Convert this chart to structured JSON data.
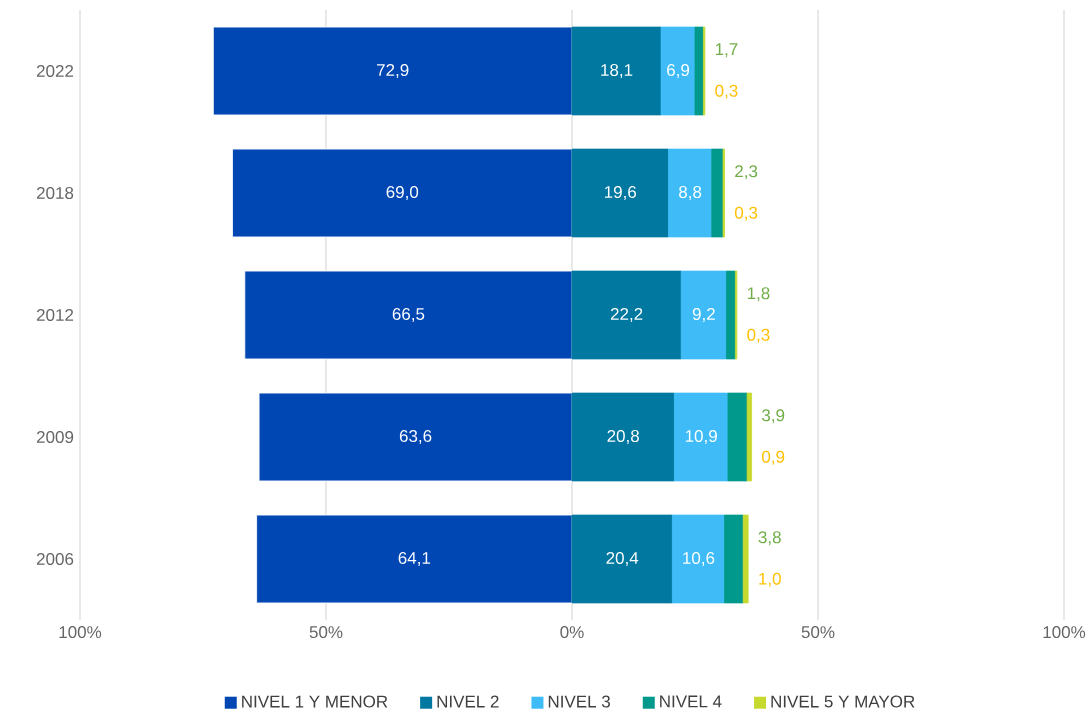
{
  "chart_data": {
    "type": "bar",
    "orientation": "horizontal",
    "stacked": true,
    "categories": [
      "2022",
      "2018",
      "2012",
      "2009",
      "2006"
    ],
    "series": [
      {
        "name": "NIVEL 1 Y MENOR",
        "color": "#0047b3",
        "values": [
          72.9,
          69.0,
          66.5,
          63.6,
          64.1
        ],
        "base": [
          -72.9,
          -69.0,
          -66.5,
          -63.6,
          -64.1
        ],
        "value_labels": [
          "72,9",
          "69,0",
          "66,5",
          "63,6",
          "64,1"
        ]
      },
      {
        "name": "NIVEL 2",
        "color": "#0078a0",
        "values": [
          18.1,
          19.6,
          22.2,
          20.8,
          20.4
        ],
        "value_labels": [
          "18,1",
          "19,6",
          "22,2",
          "20,8",
          "20,4"
        ]
      },
      {
        "name": "NIVEL 3",
        "color": "#3fbcf7",
        "values": [
          6.9,
          8.8,
          9.2,
          10.9,
          10.6
        ],
        "value_labels": [
          "6,9",
          "8,8",
          "9,2",
          "10,9",
          "10,6"
        ]
      },
      {
        "name": "NIVEL 4",
        "color": "#00998c",
        "values": [
          1.7,
          2.3,
          1.8,
          3.9,
          3.8
        ],
        "value_labels": [
          "1,7",
          "2,3",
          "1,8",
          "3,9",
          "3,8"
        ]
      },
      {
        "name": "NIVEL 5 Y MAYOR",
        "color": "#c6d92e",
        "values": [
          0.3,
          0.3,
          0.3,
          0.9,
          1.0
        ],
        "value_labels": [
          "0,3",
          "0,3",
          "0,3",
          "0,9",
          "1,0"
        ]
      }
    ],
    "xlim": [
      -100,
      100
    ],
    "xticks": [
      {
        "value": -100,
        "label": "100%"
      },
      {
        "value": -50,
        "label": "50%"
      },
      {
        "value": 0,
        "label": "0%"
      },
      {
        "value": 50,
        "label": "50%"
      },
      {
        "value": 100,
        "label": "100%"
      }
    ],
    "grid": "x",
    "legend": "bottom"
  }
}
